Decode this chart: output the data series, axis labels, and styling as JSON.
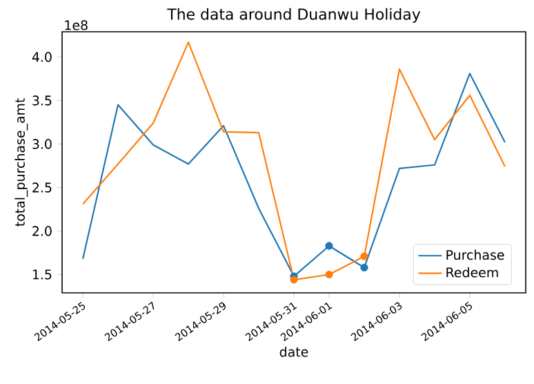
{
  "chart_data": {
    "type": "line",
    "title": "The data around Duanwu Holiday",
    "xlabel": "date",
    "ylabel": "total_purchase_amt",
    "annotations": [
      "1e8"
    ],
    "x": [
      "2014-05-25",
      "2014-05-26",
      "2014-05-27",
      "2014-05-28",
      "2014-05-29",
      "2014-05-30",
      "2014-05-31",
      "2014-06-01",
      "2014-06-02",
      "2014-06-03",
      "2014-06-04",
      "2014-06-05",
      "2014-06-06"
    ],
    "series": [
      {
        "name": "Purchase",
        "color": "#1f77b4",
        "values": [
          1.68,
          3.45,
          2.99,
          2.77,
          3.21,
          2.26,
          1.48,
          1.83,
          1.58,
          2.72,
          2.76,
          3.81,
          3.02
        ]
      },
      {
        "name": "Redeem",
        "color": "#ff7f0e",
        "values": [
          2.31,
          2.77,
          3.24,
          4.17,
          3.14,
          3.13,
          1.44,
          1.5,
          1.71,
          3.86,
          3.05,
          3.56,
          2.74
        ]
      },
      {
        "type": "scatter",
        "color": "#1f77b4",
        "x": [
          "2014-05-31",
          "2014-06-01",
          "2014-06-02"
        ],
        "values": [
          1.48,
          1.83,
          1.58
        ]
      },
      {
        "type": "scatter",
        "color": "#ff7f0e",
        "x": [
          "2014-05-31",
          "2014-06-01",
          "2014-06-02"
        ],
        "values": [
          1.44,
          1.5,
          1.71
        ]
      }
    ],
    "xlim": [
      "2014-05-24T09:50",
      "2014-06-06T14:10"
    ],
    "xticks": [
      {
        "value": "2014-05-25",
        "label": "2014-05-25"
      },
      {
        "value": "2014-05-27",
        "label": "2014-05-27"
      },
      {
        "value": "2014-05-29",
        "label": "2014-05-29"
      },
      {
        "value": "2014-05-31",
        "label": "2014-05-31"
      },
      {
        "value": "2014-06-01",
        "label": "2014-06-01"
      },
      {
        "value": "2014-06-03",
        "label": "2014-06-03"
      },
      {
        "value": "2014-06-05",
        "label": "2014-06-05"
      }
    ],
    "ylim": [
      1.29,
      4.29
    ],
    "yticks": [
      {
        "value": 1.5,
        "label": "1.5"
      },
      {
        "value": 2.0,
        "label": "2.0"
      },
      {
        "value": 2.5,
        "label": "2.5"
      },
      {
        "value": 3.0,
        "label": "3.0"
      },
      {
        "value": 3.5,
        "label": "3.5"
      },
      {
        "value": 4.0,
        "label": "4.0"
      }
    ],
    "legend": "bottom right",
    "grid": false,
    "line_style": "solid"
  }
}
